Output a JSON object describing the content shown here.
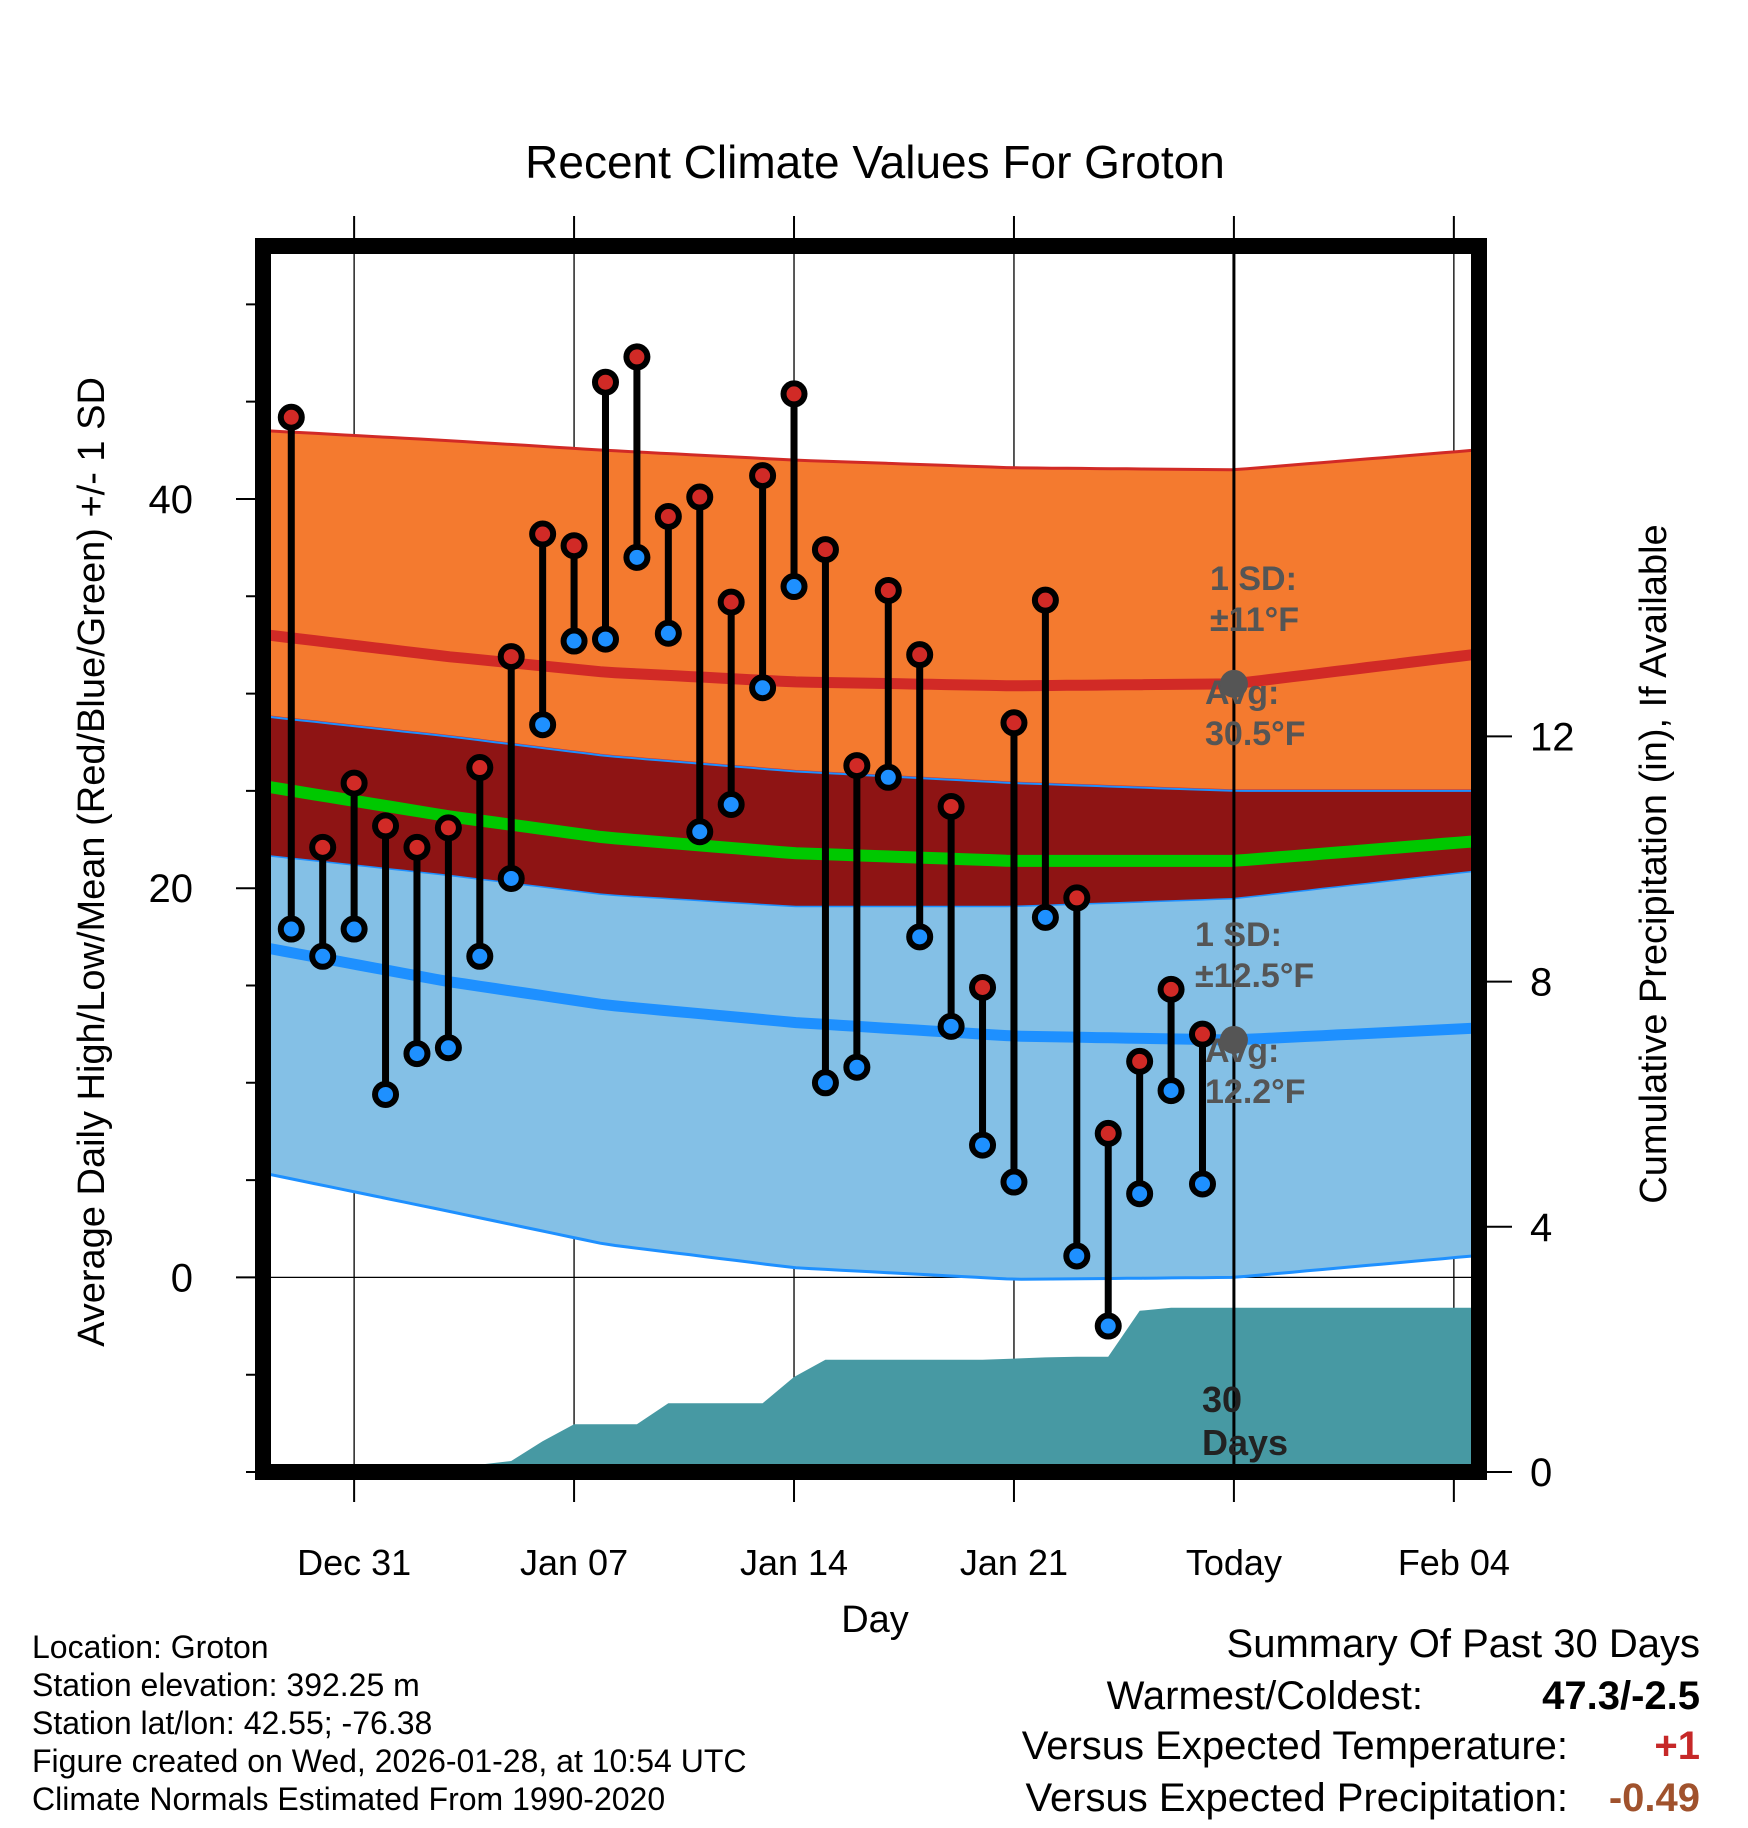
{
  "chart_data": {
    "type": "climate-range",
    "title": "Recent Climate Values For Groton",
    "xlabel": "Day",
    "ylabel_left": "Average Daily High/Low/Mean (Red/Blue/Green) +/- 1 SD",
    "ylabel_right": "Cumulative Precipitation (in), If Available",
    "x_range": [
      -2.9,
      35.8
    ],
    "y_left_range": [
      -10,
      53
    ],
    "y_right_range": [
      0,
      20
    ],
    "y_left_ticks": [
      0,
      20,
      40
    ],
    "y_left_minor": [
      -10,
      -5,
      5,
      10,
      15,
      25,
      30,
      35,
      45,
      50
    ],
    "y_right_ticks": [
      0,
      4,
      8,
      12
    ],
    "x_ticks": [
      {
        "day": 0,
        "label": "Dec 31"
      },
      {
        "day": 7,
        "label": "Jan 07"
      },
      {
        "day": 14,
        "label": "Jan 14"
      },
      {
        "day": 21,
        "label": "Jan 21"
      },
      {
        "day": 28,
        "label": "Today"
      },
      {
        "day": 35,
        "label": "Feb 04"
      }
    ],
    "days": [
      -2,
      -1,
      0,
      1,
      2,
      3,
      4,
      5,
      6,
      7,
      8,
      9,
      10,
      11,
      12,
      13,
      14,
      15,
      16,
      17,
      18,
      19,
      20,
      21,
      22,
      23,
      24,
      25,
      26,
      27
    ],
    "high": [
      44.2,
      22.1,
      25.4,
      23.2,
      22.1,
      23.1,
      26.2,
      31.9,
      38.2,
      37.6,
      46.0,
      47.3,
      39.1,
      40.1,
      34.7,
      41.2,
      45.4,
      37.4,
      26.3,
      35.3,
      32.0,
      24.2,
      14.9,
      28.5,
      34.8,
      19.5,
      7.4,
      11.1,
      14.8,
      12.5
    ],
    "low": [
      17.9,
      16.5,
      17.9,
      9.4,
      11.5,
      11.8,
      16.5,
      20.5,
      28.4,
      32.7,
      32.8,
      37.0,
      33.1,
      22.9,
      24.3,
      30.3,
      35.5,
      10.0,
      10.8,
      25.7,
      17.5,
      12.9,
      6.8,
      4.9,
      18.5,
      1.1,
      -2.5,
      4.3,
      9.6,
      4.8
    ],
    "normal_days": [
      -2.7,
      3,
      8,
      14,
      21,
      28,
      35.6
    ],
    "normal_high_avg": [
      33.0,
      31.9,
      31.1,
      30.6,
      30.4,
      30.5,
      32.0
    ],
    "normal_high_upper": [
      43.5,
      43.0,
      42.5,
      42.0,
      41.6,
      41.5,
      42.5
    ],
    "normal_high_lower": [
      28.8,
      27.8,
      26.8,
      26.0,
      25.4,
      25.0,
      25.0
    ],
    "normal_low_avg": [
      16.9,
      15.2,
      14.0,
      13.1,
      12.4,
      12.2,
      12.8
    ],
    "normal_low_upper": [
      21.7,
      20.7,
      19.7,
      19.1,
      19.1,
      19.5,
      20.9
    ],
    "normal_low_lower": [
      5.3,
      3.4,
      1.7,
      0.5,
      -0.1,
      0.0,
      1.1
    ],
    "normal_mean_avg": [
      25.2,
      23.7,
      22.6,
      21.8,
      21.4,
      21.4,
      22.4
    ],
    "precip_days": [
      -2.7,
      -1,
      0,
      1,
      2,
      3,
      4,
      5,
      6,
      7,
      8,
      9,
      10,
      11,
      12,
      13,
      14,
      15,
      16,
      17,
      18,
      19,
      20,
      21,
      22,
      23,
      24,
      25,
      26,
      27,
      28,
      35.6
    ],
    "precip_cumulative": [
      0,
      0,
      0,
      0.02,
      0.04,
      0.08,
      0.12,
      0.18,
      0.5,
      0.78,
      0.78,
      0.78,
      1.12,
      1.12,
      1.12,
      1.12,
      1.55,
      1.83,
      1.83,
      1.83,
      1.83,
      1.83,
      1.83,
      1.85,
      1.87,
      1.88,
      1.88,
      2.63,
      2.68,
      2.68,
      2.68,
      2.68
    ],
    "today_day": 28,
    "days_label": "30\nDays",
    "annotations": {
      "high_sd": "1 SD:\n±11°F",
      "high_avg": "Avg:\n30.5°F",
      "low_sd": "1 SD:\n±12.5°F",
      "low_avg": "Avg:\n12.2°F"
    },
    "colors": {
      "high_band": "#f47a2f",
      "high_line": "#d12a26",
      "overlap_band": "#8e1414",
      "low_band": "#84c0e6",
      "low_line": "#1e90ff",
      "mean_line": "#00c800",
      "precip": "#4799a3",
      "high_dot": "#d12a26",
      "low_dot": "#1e90ff",
      "annotation": "#555555",
      "marker": "#555555"
    }
  },
  "info": {
    "location": "Location: Groton",
    "elevation": "Station elevation: 392.25 m",
    "latlon": "Station lat/lon: 42.55; -76.38",
    "created": "Figure created on Wed, 2026-01-28, at 10:54 UTC",
    "normals": "Climate Normals Estimated From 1990-2020"
  },
  "summary": {
    "title": "Summary Of Past 30 Days",
    "warmest_label": "Warmest/Coldest:",
    "warmest_value": "47.3/-2.5",
    "temp_label": "Versus Expected Temperature:",
    "temp_value": "+1",
    "temp_color": "#c62828",
    "precip_label": "Versus Expected Precipitation:",
    "precip_value": "-0.49",
    "precip_color": "#a0522d"
  }
}
